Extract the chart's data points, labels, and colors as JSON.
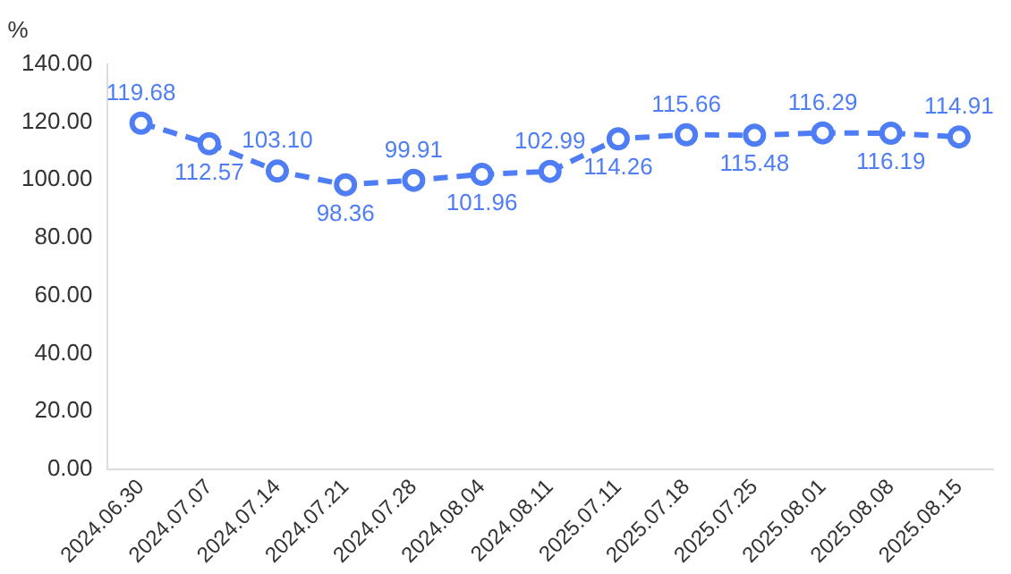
{
  "chart_data": {
    "type": "line",
    "ylabel": "%",
    "categories": [
      "2024.06.30",
      "2024.07.07",
      "2024.07.14",
      "2024.07.21",
      "2024.07.28",
      "2024.08.04",
      "2024.08.11",
      "2025.07.11",
      "2025.07.18",
      "2025.07.25",
      "2025.08.01",
      "2025.08.08",
      "2025.08.15"
    ],
    "series": [
      {
        "color": "#4e7df5",
        "values": [
          119.68,
          112.57,
          103.1,
          98.36,
          99.91,
          101.96,
          102.99,
          114.26,
          115.66,
          115.48,
          116.29,
          116.19,
          114.91
        ],
        "value_labels": [
          "119.68",
          "112.57",
          "103.10",
          "98.36",
          "99.91",
          "101.96",
          "102.99",
          "114.26",
          "115.66",
          "115.48",
          "116.29",
          "116.19",
          "114.91"
        ]
      }
    ],
    "ylim": [
      0,
      140
    ],
    "yticks": [
      {
        "value": 0,
        "label": "0.00"
      },
      {
        "value": 20,
        "label": "20.00"
      },
      {
        "value": 40,
        "label": "40.00"
      },
      {
        "value": 60,
        "label": "60.00"
      },
      {
        "value": 80,
        "label": "80.00"
      },
      {
        "value": 100,
        "label": "100.00"
      },
      {
        "value": 120,
        "label": "120.00"
      },
      {
        "value": 140,
        "label": "140.00"
      }
    ],
    "grid": false,
    "legend": false,
    "marker": "circle",
    "line_style": "dashed"
  }
}
